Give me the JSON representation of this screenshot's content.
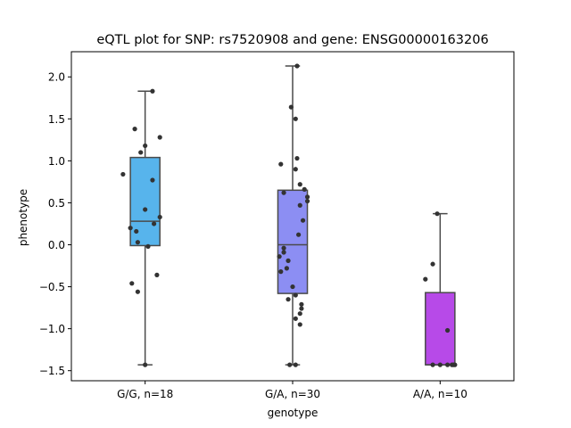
{
  "chart_data": {
    "type": "box",
    "title": "eQTL plot for SNP: rs7520908 and gene: ENSG00000163206",
    "xlabel": "genotype",
    "ylabel": "phenotype",
    "ylim": [
      -1.62,
      2.3
    ],
    "yticks": [
      -1.5,
      -1.0,
      -0.5,
      0.0,
      0.5,
      1.0,
      1.5,
      2.0
    ],
    "ytick_labels": [
      "−1.5",
      "−1.0",
      "−0.5",
      "0.0",
      "0.5",
      "1.0",
      "1.5",
      "2.0"
    ],
    "grid": false,
    "legend": "none",
    "categories": [
      "G/G, n=18",
      "G/A, n=30",
      "A/A, n=10"
    ],
    "boxes": [
      {
        "category": "G/G, n=18",
        "color": "#57b4ec",
        "whisker_low": -1.43,
        "q1": -0.01,
        "median": 0.28,
        "q3": 1.04,
        "whisker_high": 1.83
      },
      {
        "category": "G/A, n=30",
        "color": "#8c8ef3",
        "whisker_low": -1.43,
        "q1": -0.58,
        "median": 0.0,
        "q3": 0.65,
        "whisker_high": 2.13
      },
      {
        "category": "A/A, n=10",
        "color": "#b74ae8",
        "whisker_low": -1.43,
        "q1": -1.43,
        "median": -1.43,
        "q3": -0.57,
        "whisker_high": 0.37
      }
    ],
    "points": [
      {
        "category": "G/G, n=18",
        "x": [
          0.05,
          -0.15,
          -0.07,
          0.0,
          0.1,
          -0.03,
          0.05,
          0.0,
          0.1,
          0.06,
          -0.1,
          -0.06,
          -0.05,
          0.02,
          0.08,
          -0.09,
          -0.05,
          0.0
        ],
        "y": [
          1.83,
          0.84,
          1.38,
          1.18,
          1.28,
          1.1,
          0.77,
          0.42,
          0.33,
          0.25,
          0.2,
          0.16,
          0.03,
          -0.02,
          -0.36,
          -0.46,
          -0.56,
          -1.43
        ]
      },
      {
        "category": "G/A, n=30",
        "x": [
          0.03,
          -0.01,
          0.02,
          0.03,
          -0.08,
          0.02,
          0.05,
          0.08,
          -0.06,
          0.1,
          0.1,
          0.05,
          0.07,
          0.04,
          -0.06,
          -0.06,
          -0.09,
          -0.03,
          -0.04,
          -0.08,
          0.0,
          0.02,
          -0.03,
          0.06,
          0.06,
          0.05,
          0.02,
          0.05,
          -0.02,
          0.02
        ],
        "y": [
          2.13,
          1.64,
          1.5,
          1.03,
          0.96,
          0.9,
          0.72,
          0.66,
          0.62,
          0.57,
          0.52,
          0.47,
          0.29,
          0.12,
          -0.04,
          -0.09,
          -0.14,
          -0.19,
          -0.28,
          -0.32,
          -0.5,
          -0.6,
          -0.65,
          -0.71,
          -0.76,
          -0.82,
          -0.88,
          -0.95,
          -1.43,
          -1.43
        ]
      },
      {
        "category": "A/A, n=10",
        "x": [
          -0.02,
          -0.05,
          -0.1,
          0.05,
          -0.05,
          0.0,
          0.05,
          0.1,
          0.09,
          0.08
        ],
        "y": [
          0.37,
          -0.23,
          -0.41,
          -1.02,
          -1.43,
          -1.43,
          -1.43,
          -1.43,
          -1.43,
          -1.43
        ]
      }
    ],
    "colors": {
      "box_edge": "#4a4a4a",
      "point": "#333333"
    }
  }
}
